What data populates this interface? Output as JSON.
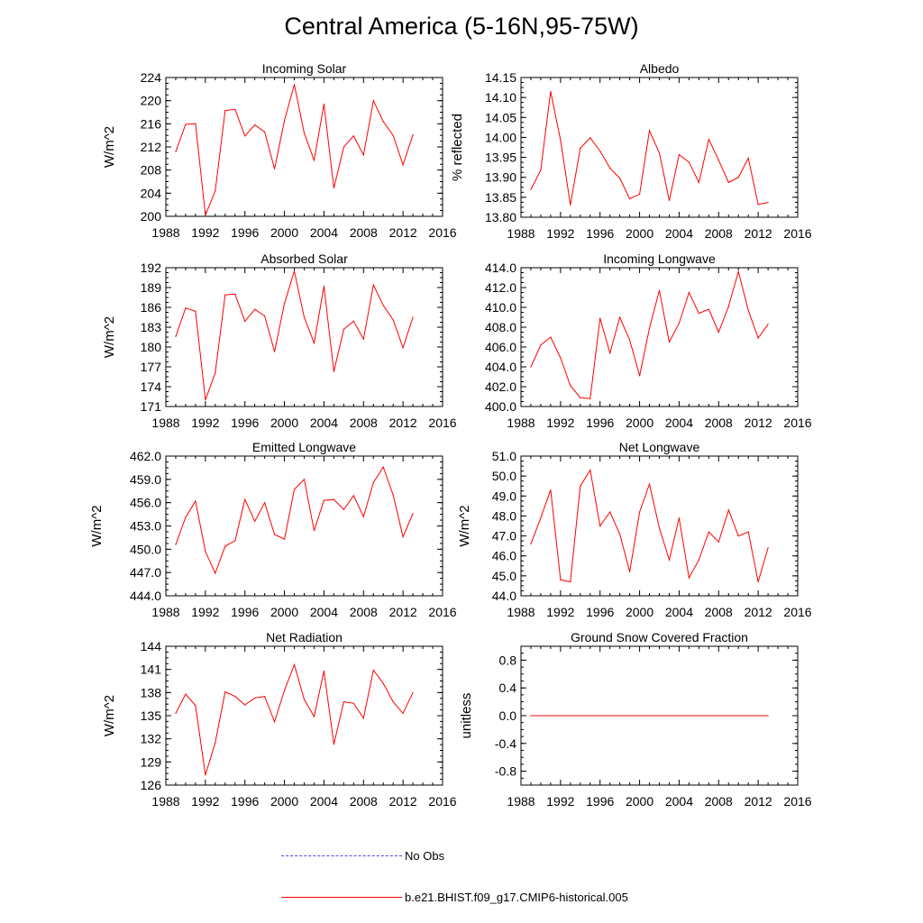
{
  "title": "Central America (5-16N,95-75W)",
  "colors": {
    "series": "#ff0000",
    "obs": "#4a4ae0",
    "axis": "#000000"
  },
  "legend": {
    "obs_label": "No Obs",
    "model_label": "b.e21.BHIST.f09_g17.CMIP6-historical.005"
  },
  "chart_data": [
    {
      "type": "line",
      "title": "Incoming Solar",
      "ylabel": "W/m^2",
      "xlim": [
        1988,
        2016
      ],
      "ylim": [
        200,
        224
      ],
      "x_ticks": [
        1988,
        1992,
        1996,
        2000,
        2004,
        2008,
        2012,
        2016
      ],
      "x_tick_labels": [
        "1988",
        "1992",
        "1996",
        "2000",
        "2004",
        "2008",
        "2012",
        "2016"
      ],
      "y_ticks": [
        200,
        204,
        208,
        212,
        216,
        220,
        224
      ],
      "y_tick_labels": [
        "200",
        "204",
        "208",
        "212",
        "216",
        "220",
        "224"
      ],
      "series": [
        {
          "name": "b.e21.BHIST.f09_g17.CMIP6-historical.005",
          "x": [
            1989,
            1990,
            1991,
            1992,
            1993,
            1994,
            1995,
            1996,
            1997,
            1998,
            1999,
            2000,
            2001,
            2002,
            2003,
            2004,
            2005,
            2006,
            2007,
            2008,
            2009,
            2010,
            2011,
            2012,
            2013
          ],
          "values": [
            211.2,
            215.9,
            216.0,
            200.2,
            204.4,
            218.3,
            218.5,
            213.9,
            215.8,
            214.6,
            208.2,
            216.6,
            222.8,
            214.4,
            209.7,
            219.4,
            204.9,
            212.0,
            213.9,
            210.6,
            220.0,
            216.4,
            214.0,
            208.9,
            214.1
          ]
        }
      ]
    },
    {
      "type": "line",
      "title": "Albedo",
      "ylabel": "% reflected",
      "xlim": [
        1988,
        2016
      ],
      "ylim": [
        13.8,
        14.15
      ],
      "x_ticks": [
        1988,
        1992,
        1996,
        2000,
        2004,
        2008,
        2012,
        2016
      ],
      "x_tick_labels": [
        "1988",
        "1992",
        "1996",
        "2000",
        "2004",
        "2008",
        "2012",
        "2016"
      ],
      "y_ticks": [
        13.8,
        13.85,
        13.9,
        13.95,
        14.0,
        14.05,
        14.1,
        14.15
      ],
      "y_tick_labels": [
        "13.80",
        "13.85",
        "13.90",
        "13.95",
        "14.00",
        "14.05",
        "14.10",
        "14.15"
      ],
      "series": [
        {
          "name": "b.e21.BHIST.f09_g17.CMIP6-historical.005",
          "x": [
            1989,
            1990,
            1991,
            1992,
            1993,
            1994,
            1995,
            1996,
            1997,
            1998,
            1999,
            2000,
            2001,
            2002,
            2003,
            2004,
            2005,
            2006,
            2007,
            2008,
            2009,
            2010,
            2011,
            2012,
            2013
          ],
          "values": [
            13.87,
            13.918,
            14.115,
            13.993,
            13.831,
            13.973,
            13.999,
            13.966,
            13.923,
            13.898,
            13.846,
            13.858,
            14.017,
            13.961,
            13.842,
            13.957,
            13.938,
            13.887,
            13.995,
            13.943,
            13.887,
            13.9,
            13.948,
            13.832,
            13.837
          ]
        }
      ]
    },
    {
      "type": "line",
      "title": "Absorbed Solar",
      "ylabel": "W/m^2",
      "xlim": [
        1988,
        2016
      ],
      "ylim": [
        171,
        192
      ],
      "x_ticks": [
        1988,
        1992,
        1996,
        2000,
        2004,
        2008,
        2012,
        2016
      ],
      "x_tick_labels": [
        "1988",
        "1992",
        "1996",
        "2000",
        "2004",
        "2008",
        "2012",
        "2016"
      ],
      "y_ticks": [
        171,
        174,
        177,
        180,
        183,
        186,
        189,
        192
      ],
      "y_tick_labels": [
        "171",
        "174",
        "177",
        "180",
        "183",
        "186",
        "189",
        "192"
      ],
      "series": [
        {
          "name": "b.e21.BHIST.f09_g17.CMIP6-historical.005",
          "x": [
            1989,
            1990,
            1991,
            1992,
            1993,
            1994,
            1995,
            1996,
            1997,
            1998,
            1999,
            2000,
            2001,
            2002,
            2003,
            2004,
            2005,
            2006,
            2007,
            2008,
            2009,
            2010,
            2011,
            2012,
            2013
          ],
          "values": [
            181.6,
            185.9,
            185.4,
            172.0,
            176.1,
            187.9,
            188.0,
            183.9,
            185.7,
            184.7,
            179.3,
            186.6,
            191.5,
            184.5,
            180.6,
            189.2,
            176.3,
            182.7,
            183.9,
            181.2,
            189.4,
            186.3,
            184.1,
            179.9,
            184.5
          ]
        }
      ]
    },
    {
      "type": "line",
      "title": "Incoming Longwave",
      "ylabel": "",
      "xlim": [
        1988,
        2016
      ],
      "ylim": [
        400,
        414
      ],
      "x_ticks": [
        1988,
        1992,
        1996,
        2000,
        2004,
        2008,
        2012,
        2016
      ],
      "x_tick_labels": [
        "1988",
        "1992",
        "1996",
        "2000",
        "2004",
        "2008",
        "2012",
        "2016"
      ],
      "y_ticks": [
        400,
        402,
        404,
        406,
        408,
        410,
        412,
        414
      ],
      "y_tick_labels": [
        "400.0",
        "402.0",
        "404.0",
        "406.0",
        "408.0",
        "410.0",
        "412.0",
        "414.0"
      ],
      "series": [
        {
          "name": "b.e21.BHIST.f09_g17.CMIP6-historical.005",
          "x": [
            1989,
            1990,
            1991,
            1992,
            1993,
            1994,
            1995,
            1996,
            1997,
            1998,
            1999,
            2000,
            2001,
            2002,
            2003,
            2004,
            2005,
            2006,
            2007,
            2008,
            2009,
            2010,
            2011,
            2012,
            2013
          ],
          "values": [
            404.0,
            406.2,
            407.0,
            404.9,
            402.1,
            400.9,
            400.8,
            408.9,
            405.4,
            409.0,
            406.7,
            403.1,
            407.9,
            411.7,
            406.5,
            408.4,
            411.5,
            409.4,
            409.8,
            407.5,
            410.1,
            413.6,
            409.7,
            406.9,
            408.3
          ]
        }
      ]
    },
    {
      "type": "line",
      "title": "Emitted Longwave",
      "ylabel": "W/m^2",
      "xlim": [
        1988,
        2016
      ],
      "ylim": [
        444,
        462
      ],
      "x_ticks": [
        1988,
        1992,
        1996,
        2000,
        2004,
        2008,
        2012,
        2016
      ],
      "x_tick_labels": [
        "1988",
        "1992",
        "1996",
        "2000",
        "2004",
        "2008",
        "2012",
        "2016"
      ],
      "y_ticks": [
        444,
        447,
        450,
        453,
        456,
        459,
        462
      ],
      "y_tick_labels": [
        "444.0",
        "447.0",
        "450.0",
        "453.0",
        "456.0",
        "459.0",
        "462.0"
      ],
      "series": [
        {
          "name": "b.e21.BHIST.f09_g17.CMIP6-historical.005",
          "x": [
            1989,
            1990,
            1991,
            1992,
            1993,
            1994,
            1995,
            1996,
            1997,
            1998,
            1999,
            2000,
            2001,
            2002,
            2003,
            2004,
            2005,
            2006,
            2007,
            2008,
            2009,
            2010,
            2011,
            2012,
            2013
          ],
          "values": [
            450.6,
            454.1,
            456.2,
            449.7,
            446.9,
            450.4,
            451.1,
            456.4,
            453.6,
            456.0,
            451.9,
            451.3,
            457.7,
            459.0,
            452.4,
            456.3,
            456.4,
            455.1,
            456.9,
            454.2,
            458.6,
            460.6,
            457.0,
            451.6,
            454.6
          ]
        }
      ]
    },
    {
      "type": "line",
      "title": "Net Longwave",
      "ylabel": "W/m^2",
      "xlim": [
        1988,
        2016
      ],
      "ylim": [
        44,
        51
      ],
      "x_ticks": [
        1988,
        1992,
        1996,
        2000,
        2004,
        2008,
        2012,
        2016
      ],
      "x_tick_labels": [
        "1988",
        "1992",
        "1996",
        "2000",
        "2004",
        "2008",
        "2012",
        "2016"
      ],
      "y_ticks": [
        44,
        45,
        46,
        47,
        48,
        49,
        50,
        51
      ],
      "y_tick_labels": [
        "44.0",
        "45.0",
        "46.0",
        "47.0",
        "48.0",
        "49.0",
        "50.0",
        "51.0"
      ],
      "series": [
        {
          "name": "b.e21.BHIST.f09_g17.CMIP6-historical.005",
          "x": [
            1989,
            1990,
            1991,
            1992,
            1993,
            1994,
            1995,
            1996,
            1997,
            1998,
            1999,
            2000,
            2001,
            2002,
            2003,
            2004,
            2005,
            2006,
            2007,
            2008,
            2009,
            2010,
            2011,
            2012,
            2013
          ],
          "values": [
            46.6,
            47.9,
            49.3,
            44.8,
            44.7,
            49.5,
            50.3,
            47.5,
            48.2,
            47.1,
            45.2,
            48.2,
            49.6,
            47.4,
            45.8,
            47.9,
            44.9,
            45.8,
            47.2,
            46.7,
            48.3,
            47.0,
            47.2,
            44.7,
            46.4
          ]
        }
      ]
    },
    {
      "type": "line",
      "title": "Net Radiation",
      "ylabel": "W/m^2",
      "xlim": [
        1988,
        2016
      ],
      "ylim": [
        126,
        144
      ],
      "x_ticks": [
        1988,
        1992,
        1996,
        2000,
        2004,
        2008,
        2012,
        2016
      ],
      "x_tick_labels": [
        "1988",
        "1992",
        "1996",
        "2000",
        "2004",
        "2008",
        "2012",
        "2016"
      ],
      "y_ticks": [
        126,
        129,
        132,
        135,
        138,
        141,
        144
      ],
      "y_tick_labels": [
        "126",
        "129",
        "132",
        "135",
        "138",
        "141",
        "144"
      ],
      "series": [
        {
          "name": "b.e21.BHIST.f09_g17.CMIP6-historical.005",
          "x": [
            1989,
            1990,
            1991,
            1992,
            1993,
            1994,
            1995,
            1996,
            1997,
            1998,
            1999,
            2000,
            2001,
            2002,
            2003,
            2004,
            2005,
            2006,
            2007,
            2008,
            2009,
            2010,
            2011,
            2012,
            2013
          ],
          "values": [
            135.3,
            137.8,
            136.3,
            127.3,
            131.5,
            138.1,
            137.5,
            136.4,
            137.3,
            137.5,
            134.2,
            138.3,
            141.6,
            137.1,
            134.9,
            140.8,
            131.3,
            136.8,
            136.6,
            134.7,
            140.9,
            139.2,
            136.8,
            135.3,
            138.0
          ]
        }
      ]
    },
    {
      "type": "line",
      "title": "Ground Snow Covered Fraction",
      "ylabel": "unitless",
      "xlim": [
        1988,
        2016
      ],
      "ylim": [
        -1.0,
        1.0
      ],
      "x_ticks": [
        1988,
        1992,
        1996,
        2000,
        2004,
        2008,
        2012,
        2016
      ],
      "x_tick_labels": [
        "1988",
        "1992",
        "1996",
        "2000",
        "2004",
        "2008",
        "2012",
        "2016"
      ],
      "y_ticks": [
        -0.8,
        -0.4,
        0.0,
        0.4,
        0.8
      ],
      "y_tick_labels": [
        "-0.8",
        "-0.4",
        "0.0",
        "0.4",
        "0.8"
      ],
      "series": [
        {
          "name": "b.e21.BHIST.f09_g17.CMIP6-historical.005",
          "x": [
            1989,
            2013
          ],
          "values": [
            0.0,
            0.0
          ]
        }
      ]
    }
  ]
}
